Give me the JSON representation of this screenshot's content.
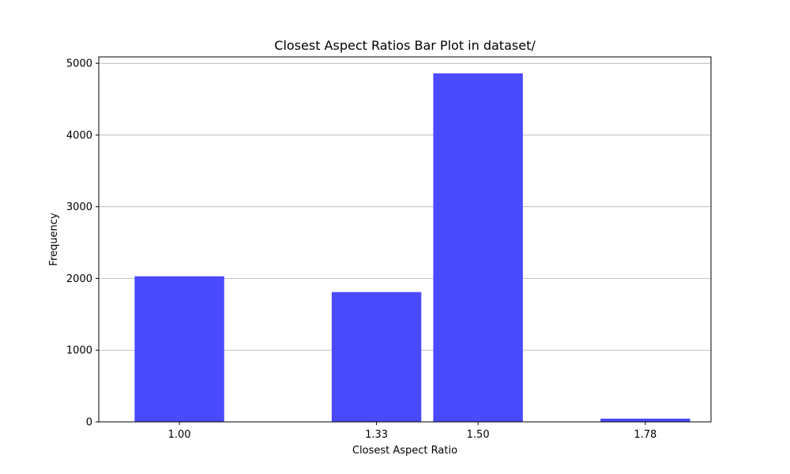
{
  "chart_data": {
    "type": "bar",
    "title": "Closest Aspect Ratios Bar Plot in dataset/",
    "xlabel": "Closest Aspect Ratio",
    "ylabel": "Frequency",
    "categories": [
      "1.00",
      "1.33",
      "1.50",
      "1.78"
    ],
    "x": [
      1.0,
      1.33,
      1.5,
      1.78
    ],
    "values": [
      2030,
      1810,
      4860,
      45
    ],
    "xlim": [
      0.865,
      1.89
    ],
    "ylim": [
      0,
      5090
    ],
    "yticks": [
      0,
      1000,
      2000,
      3000,
      4000,
      5000
    ],
    "ytick_labels": [
      "0",
      "1000",
      "2000",
      "3000",
      "4000",
      "5000"
    ],
    "bar_width": 0.15,
    "bar_color": "#4a4aff",
    "grid": "y"
  }
}
